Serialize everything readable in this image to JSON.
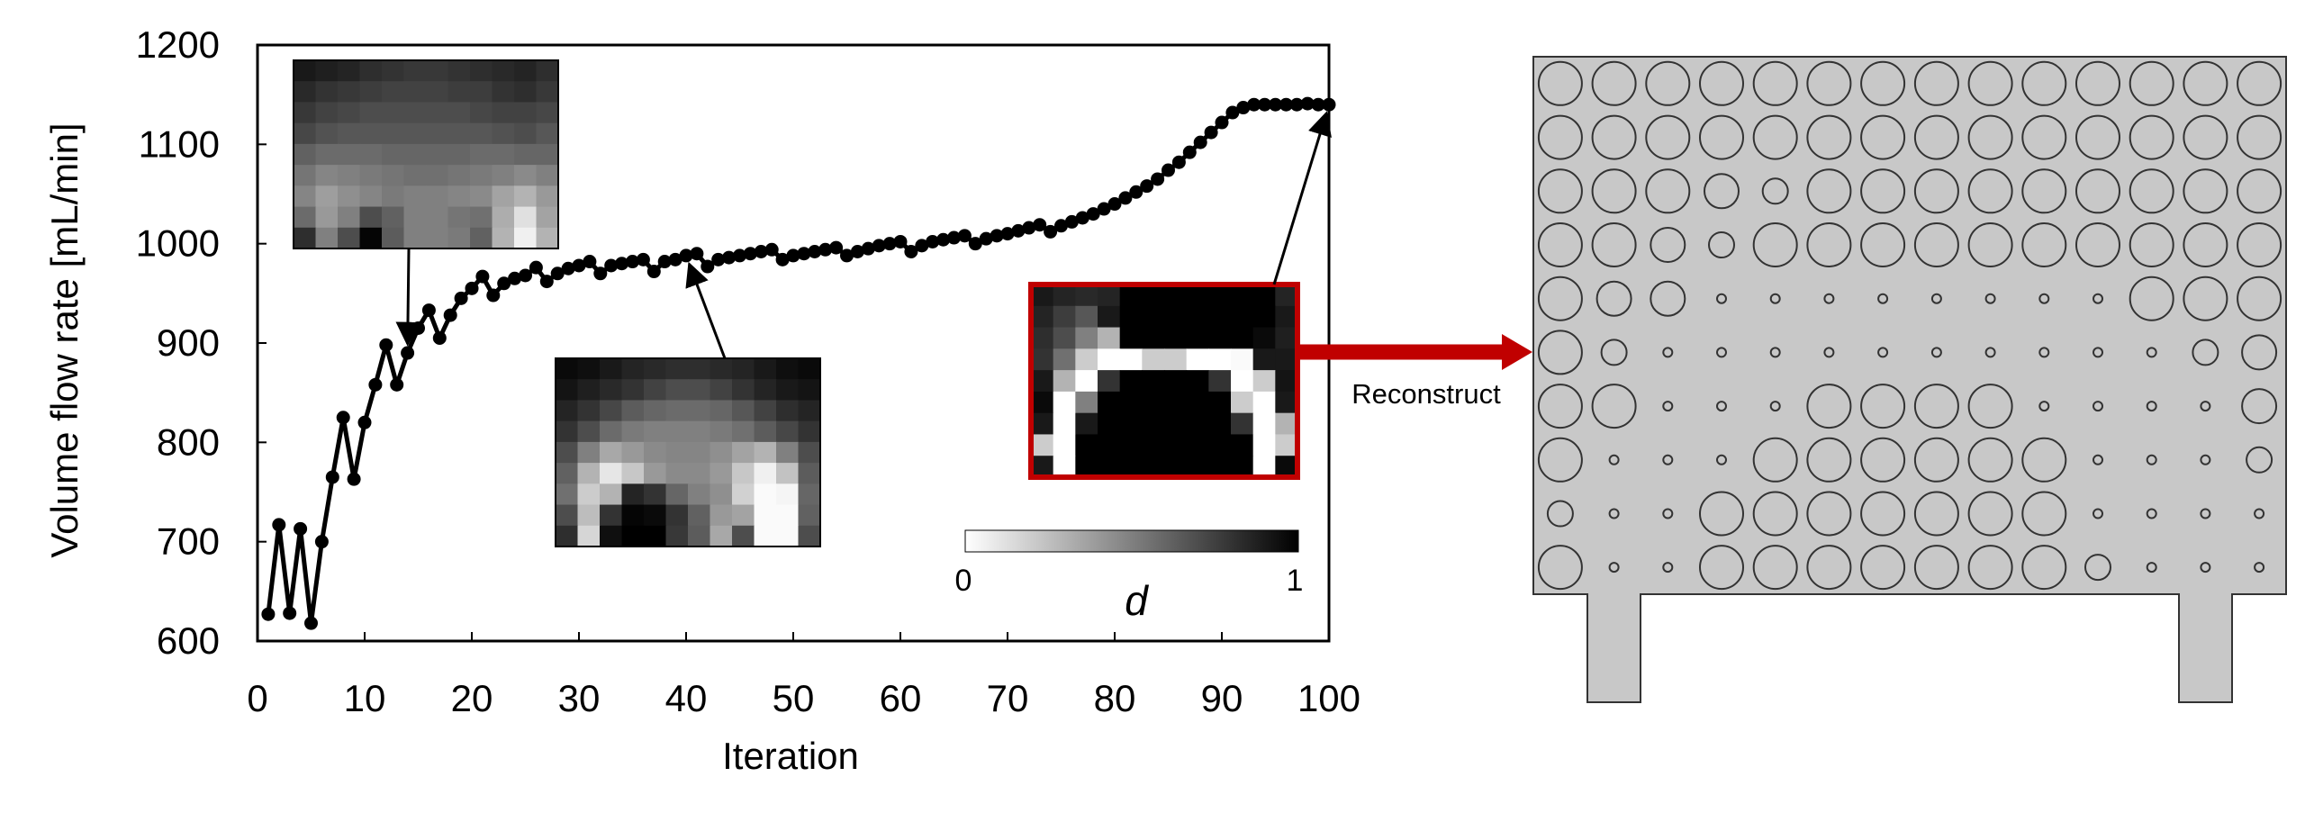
{
  "chart_data": {
    "type": "line",
    "xlabel": "Iteration",
    "ylabel": "Volume flow rate  [mL/min]",
    "xlim": [
      0,
      100
    ],
    "ylim": [
      600,
      1200
    ],
    "xticks": [
      0,
      10,
      20,
      30,
      40,
      50,
      60,
      70,
      80,
      90,
      100
    ],
    "yticks": [
      600,
      700,
      800,
      900,
      1000,
      1100,
      1200
    ],
    "grid": false,
    "legend": "none",
    "series_color": "#000000",
    "series": [
      {
        "x": [
          1,
          2,
          3,
          4,
          5,
          6,
          7,
          8,
          9,
          10,
          11,
          12,
          13,
          14,
          15,
          16,
          17,
          18,
          19,
          20,
          21,
          22,
          23,
          24,
          25,
          26,
          27,
          28,
          29,
          30,
          31,
          32,
          33,
          34,
          35,
          36,
          37,
          38,
          39,
          40,
          41,
          42,
          43,
          44,
          45,
          46,
          47,
          48,
          49,
          50,
          51,
          52,
          53,
          54,
          55,
          56,
          57,
          58,
          59,
          60,
          61,
          62,
          63,
          64,
          65,
          66,
          67,
          68,
          69,
          70,
          71,
          72,
          73,
          74,
          75,
          76,
          77,
          78,
          79,
          80,
          81,
          82,
          83,
          84,
          85,
          86,
          87,
          88,
          89,
          90,
          91,
          92,
          93,
          94,
          95,
          96,
          97,
          98,
          99,
          100
        ],
        "y": [
          627,
          717,
          628,
          713,
          618,
          700,
          765,
          825,
          763,
          820,
          858,
          898,
          858,
          890,
          915,
          933,
          905,
          928,
          945,
          955,
          967,
          948,
          960,
          965,
          968,
          976,
          962,
          970,
          975,
          978,
          982,
          970,
          978,
          980,
          982,
          984,
          972,
          982,
          984,
          988,
          990,
          977,
          984,
          986,
          988,
          990,
          992,
          994,
          984,
          988,
          990,
          992,
          994,
          996,
          988,
          992,
          995,
          998,
          1000,
          1002,
          992,
          998,
          1002,
          1004,
          1006,
          1008,
          1000,
          1005,
          1008,
          1010,
          1013,
          1016,
          1019,
          1012,
          1018,
          1022,
          1026,
          1030,
          1035,
          1040,
          1046,
          1052,
          1058,
          1065,
          1074,
          1082,
          1092,
          1102,
          1112,
          1122,
          1132,
          1137,
          1140,
          1140,
          1140,
          1140,
          1140,
          1141,
          1140,
          1140
        ]
      }
    ],
    "colorbar": {
      "label": "d",
      "min_label": "0",
      "max_label": "1",
      "from_color": "#ffffff",
      "to_color": "#000000"
    },
    "insets": [
      {
        "arrow_to_iteration": 14,
        "grid": [
          [
            0.9,
            0.88,
            0.86,
            0.82,
            0.8,
            0.78,
            0.78,
            0.8,
            0.82,
            0.84,
            0.86,
            0.82
          ],
          [
            0.84,
            0.8,
            0.78,
            0.76,
            0.74,
            0.74,
            0.74,
            0.76,
            0.76,
            0.8,
            0.82,
            0.78
          ],
          [
            0.78,
            0.74,
            0.72,
            0.7,
            0.7,
            0.7,
            0.7,
            0.7,
            0.72,
            0.74,
            0.74,
            0.72
          ],
          [
            0.72,
            0.68,
            0.66,
            0.66,
            0.66,
            0.66,
            0.66,
            0.66,
            0.66,
            0.68,
            0.7,
            0.66
          ],
          [
            0.62,
            0.58,
            0.58,
            0.58,
            0.6,
            0.6,
            0.6,
            0.6,
            0.58,
            0.58,
            0.6,
            0.6
          ],
          [
            0.54,
            0.48,
            0.5,
            0.52,
            0.54,
            0.56,
            0.56,
            0.54,
            0.52,
            0.5,
            0.46,
            0.5
          ],
          [
            0.48,
            0.38,
            0.44,
            0.48,
            0.52,
            0.5,
            0.5,
            0.48,
            0.46,
            0.36,
            0.3,
            0.4
          ],
          [
            0.58,
            0.4,
            0.5,
            0.7,
            0.62,
            0.5,
            0.5,
            0.54,
            0.56,
            0.32,
            0.12,
            0.36
          ],
          [
            0.82,
            0.5,
            0.7,
            0.98,
            0.64,
            0.5,
            0.5,
            0.52,
            0.62,
            0.3,
            0.06,
            0.3
          ]
        ]
      },
      {
        "arrow_to_iteration": 40,
        "grid": [
          [
            0.96,
            0.94,
            0.9,
            0.86,
            0.84,
            0.82,
            0.82,
            0.84,
            0.86,
            0.9,
            0.94,
            0.96
          ],
          [
            0.92,
            0.88,
            0.84,
            0.8,
            0.74,
            0.7,
            0.7,
            0.74,
            0.8,
            0.86,
            0.9,
            0.92
          ],
          [
            0.86,
            0.8,
            0.72,
            0.64,
            0.6,
            0.58,
            0.58,
            0.6,
            0.66,
            0.74,
            0.82,
            0.86
          ],
          [
            0.8,
            0.7,
            0.58,
            0.52,
            0.5,
            0.5,
            0.5,
            0.52,
            0.56,
            0.64,
            0.72,
            0.8
          ],
          [
            0.7,
            0.5,
            0.34,
            0.4,
            0.46,
            0.48,
            0.48,
            0.44,
            0.36,
            0.3,
            0.5,
            0.7
          ],
          [
            0.62,
            0.3,
            0.1,
            0.22,
            0.4,
            0.46,
            0.46,
            0.4,
            0.22,
            0.06,
            0.24,
            0.64
          ],
          [
            0.56,
            0.2,
            0.3,
            0.86,
            0.8,
            0.6,
            0.5,
            0.44,
            0.18,
            0.02,
            0.04,
            0.6
          ],
          [
            0.7,
            0.26,
            0.8,
            0.98,
            0.96,
            0.8,
            0.62,
            0.4,
            0.36,
            0.02,
            0.02,
            0.62
          ],
          [
            0.82,
            0.16,
            0.94,
            1.0,
            1.0,
            0.78,
            0.64,
            0.34,
            0.7,
            0.02,
            0.02,
            0.7
          ]
        ]
      },
      {
        "arrow_to_iteration": 100,
        "highlight_color": "#c00000",
        "grid": [
          [
            0.9,
            0.86,
            0.84,
            0.86,
            1,
            1,
            1,
            1,
            1,
            1,
            1,
            0.86
          ],
          [
            0.86,
            0.76,
            0.66,
            0.9,
            1,
            1,
            1,
            1,
            1,
            1,
            1,
            0.9
          ],
          [
            0.82,
            0.7,
            0.5,
            0.3,
            1,
            1,
            1,
            1,
            1,
            1,
            0.96,
            0.88
          ],
          [
            0.8,
            0.56,
            0.2,
            0.0,
            0.0,
            0.2,
            0.2,
            0.0,
            0.0,
            0.02,
            0.9,
            0.9
          ],
          [
            0.9,
            0.3,
            0.0,
            0.8,
            1,
            1,
            1,
            1,
            0.8,
            0.0,
            0.2,
            0.92
          ],
          [
            0.96,
            0.0,
            0.5,
            1,
            1,
            1,
            1,
            1,
            1,
            0.2,
            0.0,
            0.9
          ],
          [
            0.9,
            0.0,
            0.9,
            1,
            1,
            1,
            1,
            1,
            1,
            0.8,
            0.0,
            0.3
          ],
          [
            0.2,
            0.0,
            1,
            1,
            1,
            1,
            1,
            1,
            1,
            1,
            0.0,
            0.2
          ],
          [
            0.9,
            0.0,
            1,
            1,
            1,
            1,
            1,
            1,
            1,
            1,
            0.0,
            0.96
          ]
        ]
      }
    ],
    "reconstruct_label": "Reconstruct",
    "arrow_color": "#c00000",
    "design": {
      "fill_color": "#c8c8c8",
      "cols": 14,
      "rows": 10,
      "hole_sizes": [
        [
          5,
          5,
          5,
          5,
          5,
          5,
          5,
          5,
          5,
          5,
          5,
          5,
          5,
          5
        ],
        [
          5,
          5,
          5,
          5,
          5,
          5,
          5,
          5,
          5,
          5,
          5,
          5,
          5,
          5
        ],
        [
          5,
          5,
          5,
          4,
          3,
          5,
          5,
          5,
          5,
          5,
          5,
          5,
          5,
          5
        ],
        [
          5,
          5,
          4,
          3,
          5,
          5,
          5,
          5,
          5,
          5,
          5,
          5,
          5,
          5
        ],
        [
          5,
          4,
          4,
          1,
          1,
          1,
          1,
          1,
          1,
          1,
          1,
          5,
          5,
          5
        ],
        [
          5,
          3,
          1,
          1,
          1,
          1,
          1,
          1,
          1,
          1,
          1,
          1,
          3,
          4
        ],
        [
          5,
          5,
          1,
          1,
          1,
          5,
          5,
          5,
          5,
          1,
          1,
          1,
          1,
          4
        ],
        [
          5,
          1,
          1,
          1,
          5,
          5,
          5,
          5,
          5,
          5,
          1,
          1,
          1,
          3
        ],
        [
          3,
          1,
          1,
          5,
          5,
          5,
          5,
          5,
          5,
          5,
          1,
          1,
          1,
          1
        ],
        [
          5,
          1,
          1,
          5,
          5,
          5,
          5,
          5,
          5,
          5,
          3,
          1,
          1,
          1
        ]
      ]
    }
  }
}
